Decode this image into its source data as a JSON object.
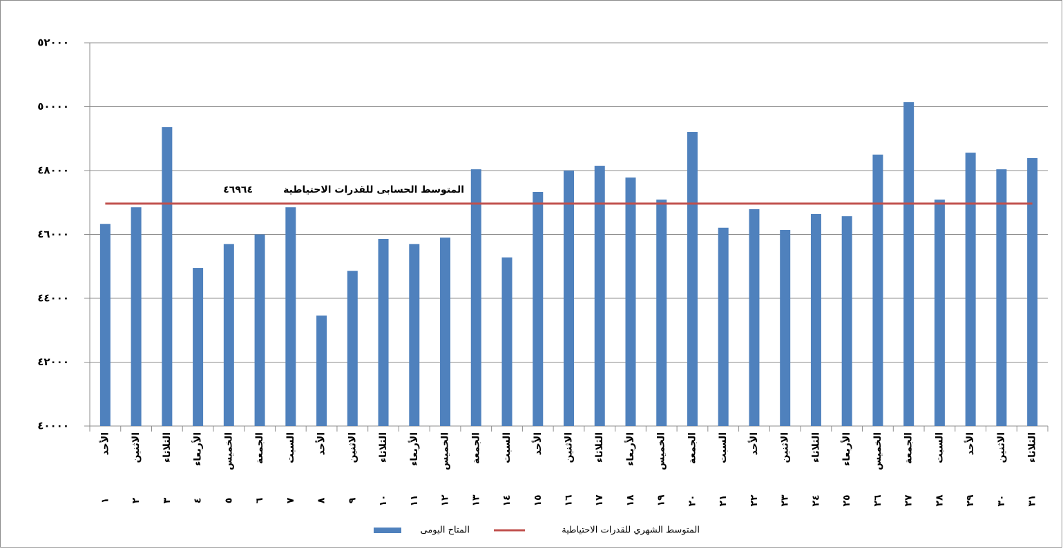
{
  "chart_data": {
    "type": "bar",
    "categories": [
      "الأحد",
      "الاثنين",
      "الثلاثاء",
      "الأربعاء",
      "الخميس",
      "الجمعة",
      "السبت",
      "الأحد",
      "الاثنين",
      "الثلاثاء",
      "الأربعاء",
      "الخميس",
      "الجمعة",
      "السبت",
      "الأحد",
      "الاثنين",
      "الثلاثاء",
      "الأربعاء",
      "الخميس",
      "الجمعة",
      "السبت",
      "الأحد",
      "الاثنين",
      "الثلاثاء",
      "الأربعاء",
      "الخميس",
      "الجمعة",
      "السبت",
      "الأحد",
      "الاثنين",
      "الثلاثاء"
    ],
    "category_numbers": [
      "١",
      "٢",
      "٣",
      "٤",
      "٥",
      "٦",
      "٧",
      "٨",
      "٩",
      "١٠",
      "١١",
      "١٢",
      "١٣",
      "١٤",
      "١٥",
      "١٦",
      "١٧",
      "١٨",
      "١٩",
      "٢٠",
      "٢١",
      "٢٢",
      "٢٣",
      "٢٤",
      "٢٥",
      "٢٦",
      "٢٧",
      "٢٨",
      "٢٩",
      "٣٠",
      "٣١"
    ],
    "series": [
      {
        "name": "المتاح اليومى",
        "color": "#4f81bd",
        "values": [
          46330,
          46850,
          49360,
          44950,
          45700,
          46000,
          46850,
          43460,
          44860,
          45860,
          45700,
          45900,
          48040,
          45280,
          47330,
          48000,
          48150,
          47780,
          47090,
          49210,
          46210,
          46790,
          46140,
          46640,
          46570,
          48500,
          50140,
          47090,
          48560,
          48040,
          48390
        ]
      }
    ],
    "reference_line": {
      "name": "المتوسط الشهري للقدرات الاحتياطية",
      "color": "#c0504d",
      "value": 46964,
      "value_label": "٤٦٩٦٤",
      "annotation": "المتوسط الحسابى للقدرات الاحتياطية"
    },
    "ylim": [
      40000,
      52000
    ],
    "yticks": [
      {
        "value": 40000,
        "label": "٤٠٠٠٠"
      },
      {
        "value": 42000,
        "label": "٤٢٠٠٠"
      },
      {
        "value": 44000,
        "label": "٤٤٠٠٠"
      },
      {
        "value": 46000,
        "label": "٤٦٠٠٠"
      },
      {
        "value": 48000,
        "label": "٤٨٠٠٠"
      },
      {
        "value": 50000,
        "label": "٥٠٠٠٠"
      },
      {
        "value": 52000,
        "label": "٥٢٠٠٠"
      }
    ],
    "grid": true
  }
}
